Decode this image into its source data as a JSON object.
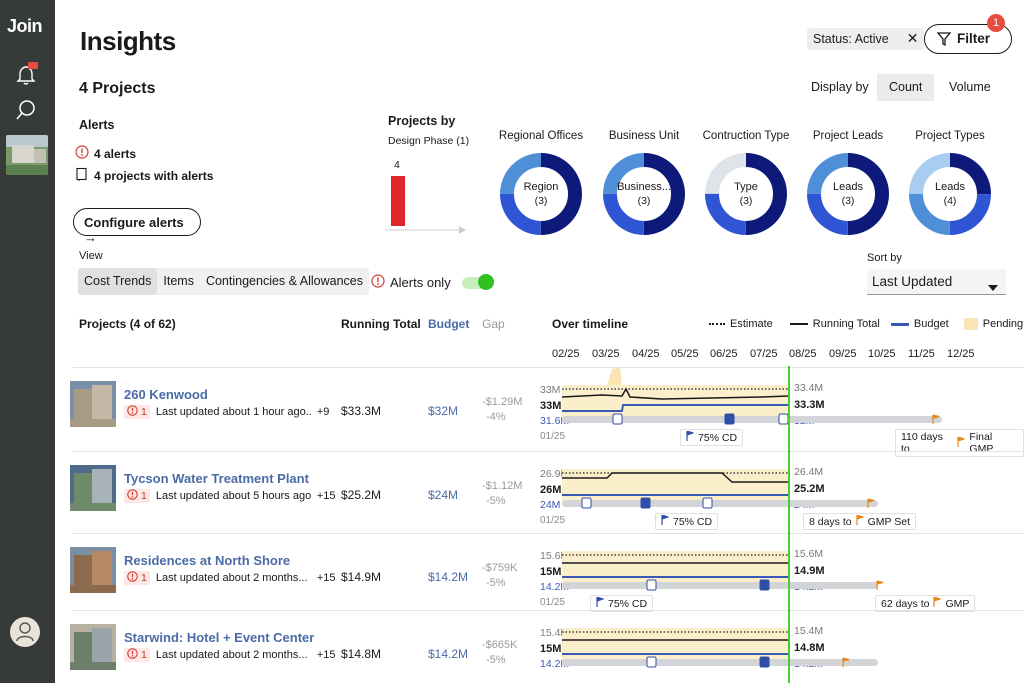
{
  "app": {
    "logo": "Join"
  },
  "page": {
    "title": "Insights"
  },
  "filters": {
    "chip_label": "Status: Active",
    "filter_label": "Filter",
    "filter_count": "1"
  },
  "summary": {
    "projects_count": "4 Projects",
    "display_by_label": "Display by",
    "display_options": [
      "Count",
      "Volume"
    ],
    "display_selected": "Count"
  },
  "alerts": {
    "title": "Alerts",
    "alerts_count": "4 alerts",
    "projects_with_alerts": "4 projects with alerts",
    "configure_label": "Configure alerts →"
  },
  "projects_by": {
    "title": "Projects by",
    "subtitle": "Design Phase (1)",
    "bar_value": "4"
  },
  "donuts": [
    {
      "title": "Regional Offices",
      "center": "Region",
      "count": "(3)"
    },
    {
      "title": "Business Unit",
      "center": "Business...",
      "count": "(3)"
    },
    {
      "title": "Contruction Type",
      "center": "Type",
      "count": "(3)"
    },
    {
      "title": "Project Leads",
      "center": "Leads",
      "count": "(3)"
    },
    {
      "title": "Project Types",
      "center": "Leads",
      "count": "(4)"
    }
  ],
  "view": {
    "label": "View",
    "tabs": [
      "Cost Trends",
      "Items",
      "Contingencies & Allowances"
    ],
    "selected": "Cost Trends",
    "alerts_only_label": "Alerts only",
    "alerts_only_on": true
  },
  "sort": {
    "label": "Sort by",
    "value": "Last Updated"
  },
  "table": {
    "headers": {
      "projects": "Projects (4 of 62)",
      "running_total": "Running Total",
      "budget": "Budget",
      "gap": "Gap",
      "timeline": "Over timeline"
    },
    "legend": {
      "estimate": "Estimate",
      "running_total": "Running Total",
      "budget": "Budget",
      "pending": "Pending"
    },
    "months": [
      "02/25",
      "03/25",
      "04/25",
      "05/25",
      "06/25",
      "07/25",
      "08/25",
      "09/25",
      "10/25",
      "11/25",
      "12/25"
    ],
    "rows": [
      {
        "name": "260 Kenwood",
        "alert_count": "1",
        "updated": "Last updated about 1 hour ago...",
        "extra": "+9",
        "running_total": "$33.3M",
        "budget": "$32M",
        "gap_amount": "-$1.29M",
        "gap_pct": "-4%",
        "tl_top": "33M",
        "tl_mid": "33M",
        "tl_budget": "31.6M",
        "tl_start": "01/25",
        "tl_r_top": "33.4M",
        "tl_r_mid": "33.3M",
        "tl_r_budget": "32M",
        "cd_label": "75% CD",
        "milestone": "110 days to",
        "milestone_name": "Final GMP"
      },
      {
        "name": "Tycson Water Treatment Plant",
        "alert_count": "1",
        "updated": "Last updated about 5 hours ago...",
        "extra": "+15",
        "running_total": "$25.2M",
        "budget": "$24M",
        "gap_amount": "-$1.12M",
        "gap_pct": "-5%",
        "tl_top": "26.9M",
        "tl_mid": "26M",
        "tl_budget": "24M",
        "tl_start": "01/25",
        "tl_r_top": "26.4M",
        "tl_r_mid": "25.2M",
        "tl_r_budget": "24M",
        "cd_label": "75% CD",
        "milestone": "8 days to",
        "milestone_name": "GMP Set"
      },
      {
        "name": "Residences at North Shore",
        "alert_count": "1",
        "updated": "Last updated about 2 months...",
        "extra": "+15",
        "running_total": "$14.9M",
        "budget": "$14.2M",
        "gap_amount": "-$759K",
        "gap_pct": "-5%",
        "tl_top": "15.6M",
        "tl_mid": "15M",
        "tl_budget": "14.2M",
        "tl_start": "01/25",
        "tl_r_top": "15.6M",
        "tl_r_mid": "14.9M",
        "tl_r_budget": "14.2M",
        "cd_label": "75% CD",
        "milestone": "62 days to",
        "milestone_name": "GMP"
      },
      {
        "name": "Starwind: Hotel + Event Center",
        "alert_count": "1",
        "updated": "Last updated about 2 months...",
        "extra": "+15",
        "running_total": "$14.8M",
        "budget": "$14.2M",
        "gap_amount": "-$665K",
        "gap_pct": "-5%",
        "tl_top": "15.4M",
        "tl_mid": "15M",
        "tl_budget": "14.2M",
        "tl_start": "",
        "tl_r_top": "15.4M",
        "tl_r_mid": "14.8M",
        "tl_r_budget": "14.2M",
        "cd_label": "",
        "milestone": "",
        "milestone_name": ""
      }
    ]
  },
  "colors": {
    "sidebar": "#363b3a",
    "link": "#4a6ba8",
    "alert_red": "#e74c3c",
    "bar_red": "#e0262b",
    "donut_dark": "#0d1a7a",
    "donut_mid": "#2f55d4",
    "donut_light": "#4f8fd8",
    "today_line": "#41d12a",
    "pending": "#fbeecb"
  }
}
